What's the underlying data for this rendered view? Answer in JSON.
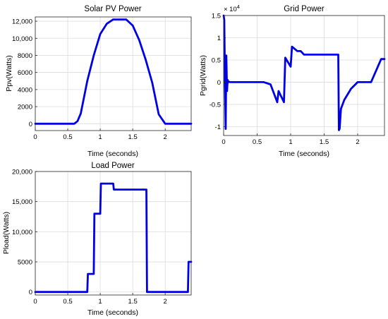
{
  "colors": {
    "series": "#0000e6",
    "grid": "#dcdcdc",
    "frame": "#262626"
  },
  "chart_data": [
    {
      "type": "line",
      "title": "Solar PV Power",
      "xlabel": "Time (seconds)",
      "ylabel": "Ppv(Watts)",
      "xlim": [
        0,
        2.4
      ],
      "ylim": [
        -800,
        12500
      ],
      "xticks": [
        0,
        0.5,
        1,
        1.5,
        2
      ],
      "xtick_labels": [
        "0",
        "0.5",
        "1",
        "1.5",
        "2"
      ],
      "yticks": [
        0,
        2000,
        4000,
        6000,
        8000,
        10000,
        12000
      ],
      "ytick_labels": [
        "0",
        "2000",
        "4000",
        "6000",
        "8000",
        "10,000",
        "12,000"
      ],
      "grid": true,
      "series": [
        {
          "x": [
            0,
            0.6,
            0.65,
            0.7,
            0.8,
            0.9,
            1.0,
            1.1,
            1.2,
            1.3,
            1.4,
            1.5,
            1.6,
            1.7,
            1.8,
            1.9,
            2.0,
            2.4
          ],
          "values": [
            0,
            0,
            300,
            1200,
            5000,
            8000,
            10500,
            11700,
            12200,
            12200,
            12200,
            11500,
            9800,
            7500,
            4800,
            1100,
            0,
            0
          ]
        }
      ]
    },
    {
      "type": "line",
      "title": "Grid Power",
      "xlabel": "Time (seconds)",
      "ylabel": "Pgrid(Watts)",
      "y_exponent": "× 10",
      "y_exponent_power": "4",
      "xlim": [
        0,
        2.4
      ],
      "ylim": [
        -1.2,
        1.5
      ],
      "xticks": [
        0,
        0.5,
        1,
        1.5,
        2
      ],
      "xtick_labels": [
        "0",
        "0.5",
        "1",
        "1.5",
        "2"
      ],
      "yticks": [
        -1,
        -0.5,
        0,
        0.5,
        1,
        1.5
      ],
      "ytick_labels": [
        "-1",
        "-0.5",
        "0",
        "0.5",
        "1",
        "1.5"
      ],
      "grid": true,
      "series": [
        {
          "x": [
            0,
            0.01,
            0.02,
            0.03,
            0.04,
            0.05,
            0.06,
            0.07,
            0.08,
            0.1,
            0.3,
            0.6,
            0.7,
            0.8,
            0.82,
            0.9,
            0.92,
            1.0,
            1.02,
            1.1,
            1.15,
            1.2,
            1.5,
            1.71,
            1.72,
            1.73,
            1.75,
            1.8,
            1.9,
            2.0,
            2.1,
            2.2,
            2.35,
            2.4
          ],
          "values": [
            1.5,
            1.4,
            0,
            -1.05,
            0.6,
            -0.2,
            0.05,
            0,
            0.01,
            0,
            0,
            0,
            -0.05,
            -0.45,
            -0.2,
            -0.45,
            0.55,
            0.35,
            0.8,
            0.7,
            0.7,
            0.62,
            0.62,
            0.62,
            -1.08,
            -1.05,
            -0.6,
            -0.4,
            -0.15,
            0,
            0,
            0,
            0.52,
            0.52
          ]
        }
      ]
    },
    {
      "type": "line",
      "title": "Load Power",
      "xlabel": "Time (seconds)",
      "ylabel": "Pload(Watts)",
      "xlim": [
        0,
        2.4
      ],
      "ylim": [
        -500,
        20000
      ],
      "xticks": [
        0,
        0.5,
        1,
        1.5,
        2
      ],
      "xtick_labels": [
        "0",
        "0.5",
        "1",
        "1.5",
        "2"
      ],
      "yticks": [
        0,
        5000,
        10000,
        15000,
        20000
      ],
      "ytick_labels": [
        "0",
        "5000",
        "10,000",
        "15,000",
        "20,000"
      ],
      "grid": true,
      "series": [
        {
          "x": [
            0,
            0.8,
            0.81,
            0.9,
            0.91,
            1.0,
            1.01,
            1.2,
            1.21,
            1.71,
            1.72,
            2.35,
            2.36,
            2.4
          ],
          "values": [
            0,
            0,
            3000,
            3000,
            13000,
            13000,
            18000,
            18000,
            17000,
            17000,
            0,
            0,
            5000,
            5000
          ]
        }
      ]
    }
  ]
}
